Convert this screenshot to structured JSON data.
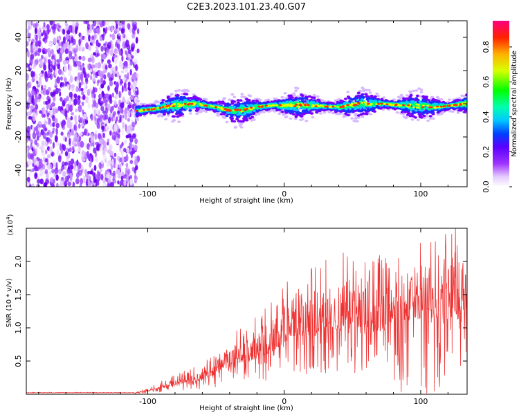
{
  "title": "C2E3.2023.101.23.40.G07",
  "chart_data": [
    {
      "type": "heatmap",
      "xlabel": "Height of straight line (km)",
      "ylabel": "Frequency (Hz)",
      "xlim": [
        -189,
        134
      ],
      "ylim": [
        -50,
        50
      ],
      "x_ticks": [
        -100,
        0,
        100
      ],
      "y_ticks": [
        -40,
        -20,
        0,
        20,
        40
      ],
      "colorbar": {
        "label": "Normalized spectral amplitude",
        "range": [
          0,
          0.95
        ],
        "ticks": [
          0.0,
          0.2,
          0.4,
          0.6,
          0.8
        ]
      },
      "noise_region_x": [
        -189,
        -107
      ],
      "ridge_frequency": [
        {
          "x": -105,
          "y": -4
        },
        {
          "x": -95,
          "y": -3
        },
        {
          "x": -80,
          "y": -1
        },
        {
          "x": -65,
          "y": 0
        },
        {
          "x": -50,
          "y": -2
        },
        {
          "x": -40,
          "y": -4
        },
        {
          "x": -30,
          "y": -4
        },
        {
          "x": -20,
          "y": -2
        },
        {
          "x": -10,
          "y": -1
        },
        {
          "x": 0,
          "y": -1
        },
        {
          "x": 20,
          "y": -1
        },
        {
          "x": 40,
          "y": -2
        },
        {
          "x": 55,
          "y": 0
        },
        {
          "x": 70,
          "y": 0
        },
        {
          "x": 90,
          "y": -1
        },
        {
          "x": 110,
          "y": -2
        },
        {
          "x": 134,
          "y": 0
        }
      ]
    },
    {
      "type": "line",
      "xlabel": "Height of straight line (km)",
      "ylabel": "SNR (10 * v/v)",
      "scale_label": "(x10",
      "scale_exponent": "4",
      "xlim": [
        -189,
        134
      ],
      "ylim": [
        0,
        2.5
      ],
      "x_ticks": [
        -100,
        0,
        100
      ],
      "y_ticks": [
        0.5,
        1.0,
        1.5,
        2.0
      ],
      "color": "#ee3333",
      "envelope": [
        {
          "x": -189,
          "max": 0.03
        },
        {
          "x": -110,
          "max": 0.03
        },
        {
          "x": -100,
          "max": 0.1
        },
        {
          "x": -90,
          "max": 0.2
        },
        {
          "x": -75,
          "max": 0.35
        },
        {
          "x": -60,
          "max": 0.45
        },
        {
          "x": -40,
          "max": 0.9
        },
        {
          "x": -25,
          "max": 1.1
        },
        {
          "x": -10,
          "max": 1.4
        },
        {
          "x": 0,
          "max": 1.7
        },
        {
          "x": 20,
          "max": 1.9
        },
        {
          "x": 40,
          "max": 2.2
        },
        {
          "x": 60,
          "max": 2.0
        },
        {
          "x": 80,
          "max": 2.2
        },
        {
          "x": 100,
          "max": 2.5
        },
        {
          "x": 120,
          "max": 2.6
        },
        {
          "x": 134,
          "max": 2.4
        }
      ]
    }
  ]
}
